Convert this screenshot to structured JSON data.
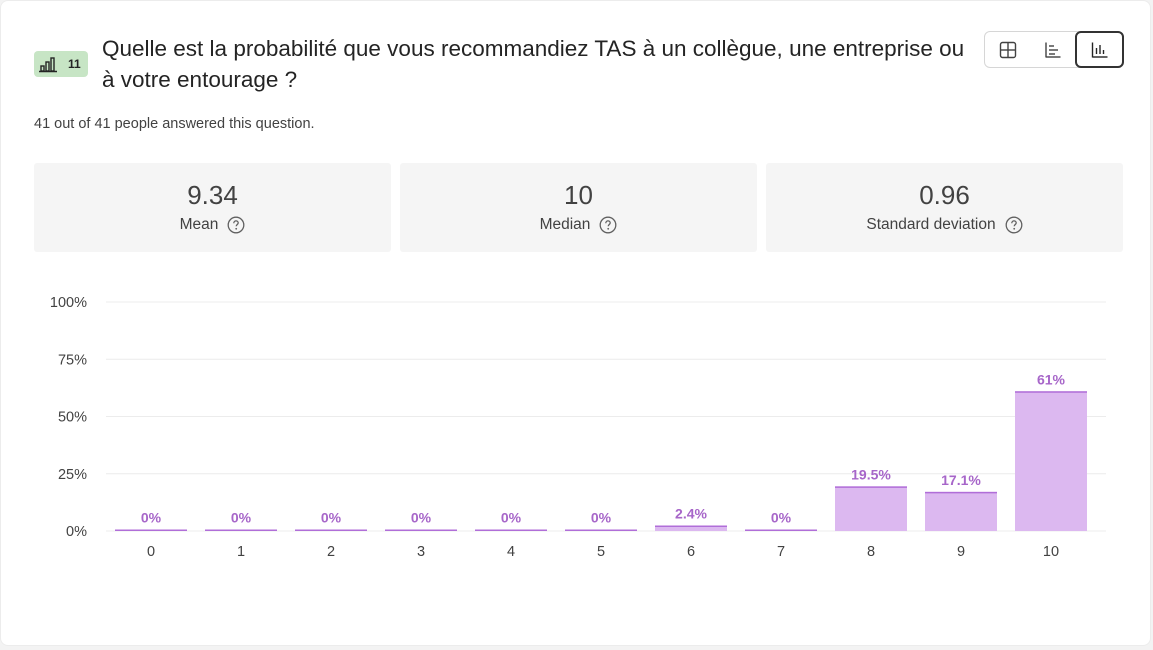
{
  "question": {
    "number": "11",
    "title": "Quelle est la probabilité que vous recommandiez TAS à un collègue, une entreprise ou à votre entourage ?",
    "answered_text": "41 out of 41 people answered this question."
  },
  "view_switch": {
    "options": [
      "grid-view",
      "list-view",
      "chart-view"
    ],
    "active": "chart-view"
  },
  "stats": [
    {
      "value": "9.34",
      "label": "Mean"
    },
    {
      "value": "10",
      "label": "Median"
    },
    {
      "value": "0.96",
      "label": "Standard deviation"
    }
  ],
  "colors": {
    "bar_fill": "#dcb8f0",
    "bar_stroke": "#b06ed8",
    "data_label": "#a766c9",
    "badge_bg": "#c7e5c5"
  },
  "chart_data": {
    "type": "bar",
    "categories": [
      "0",
      "1",
      "2",
      "3",
      "4",
      "5",
      "6",
      "7",
      "8",
      "9",
      "10"
    ],
    "values": [
      0,
      0,
      0,
      0,
      0,
      0,
      2.4,
      0,
      19.5,
      17.1,
      61
    ],
    "data_labels": [
      "0%",
      "0%",
      "0%",
      "0%",
      "0%",
      "0%",
      "2.4%",
      "0%",
      "19.5%",
      "17.1%",
      "61%"
    ],
    "ylim": [
      0,
      100
    ],
    "yticks": [
      0,
      25,
      50,
      75,
      100
    ],
    "ytick_labels": [
      "0%",
      "25%",
      "50%",
      "75%",
      "100%"
    ],
    "grid": true,
    "title": "",
    "xlabel": "",
    "ylabel": ""
  }
}
